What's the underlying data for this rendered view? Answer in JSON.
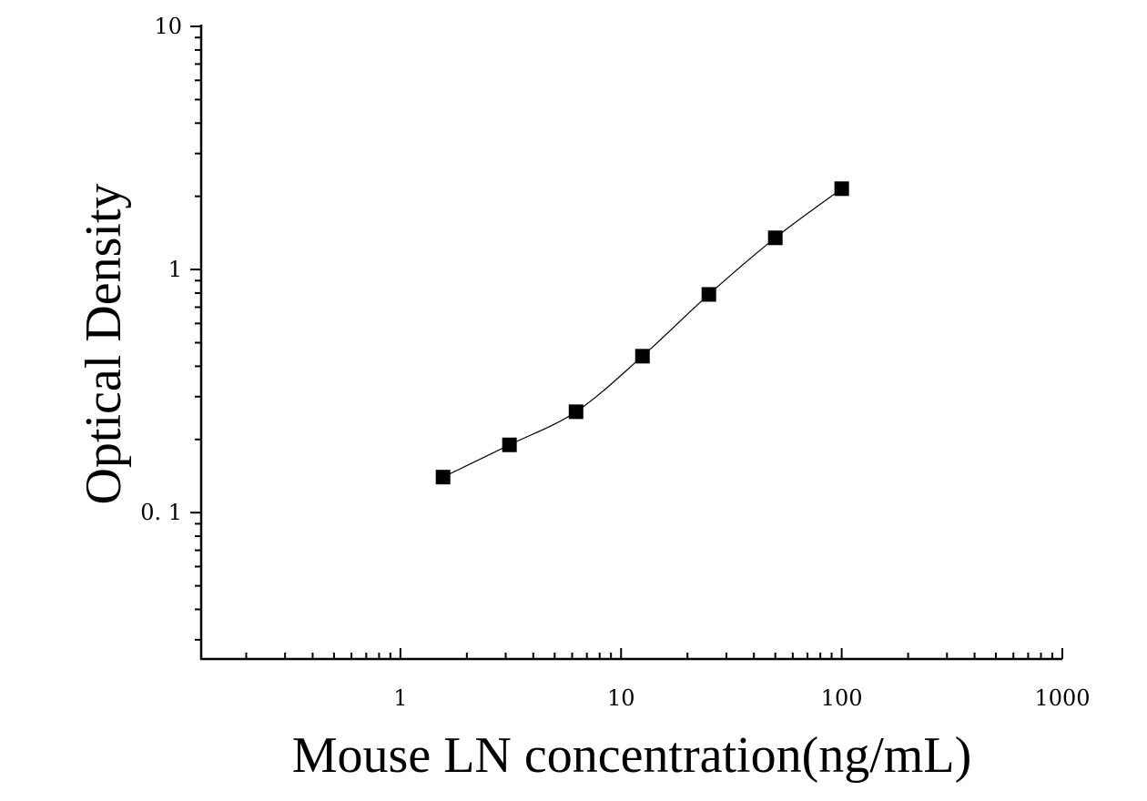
{
  "chart_data": {
    "type": "scatter",
    "xlabel": "Mouse LN concentration(ng/mL)",
    "ylabel": "Optical Density",
    "x_scale": "log",
    "y_scale": "log",
    "xlim": [
      0.125,
      1000
    ],
    "ylim": [
      0.025,
      10
    ],
    "x_ticks": [
      {
        "value": 1,
        "label": "1"
      },
      {
        "value": 10,
        "label": "10"
      },
      {
        "value": 100,
        "label": "100"
      },
      {
        "value": 1000,
        "label": "1000"
      }
    ],
    "y_ticks": [
      {
        "value": 0.1,
        "label": "0. 1"
      },
      {
        "value": 1,
        "label": "1"
      },
      {
        "value": 10,
        "label": "10"
      }
    ],
    "grid": false,
    "series": [
      {
        "marker": "square",
        "color": "#000000",
        "points": [
          {
            "x": 1.56,
            "y": 0.14
          },
          {
            "x": 3.12,
            "y": 0.19
          },
          {
            "x": 6.25,
            "y": 0.26
          },
          {
            "x": 12.5,
            "y": 0.44
          },
          {
            "x": 25,
            "y": 0.79
          },
          {
            "x": 50,
            "y": 1.35
          },
          {
            "x": 100,
            "y": 2.15
          }
        ]
      }
    ],
    "fit_curve": {
      "type": "smooth",
      "color": "#000000"
    }
  }
}
